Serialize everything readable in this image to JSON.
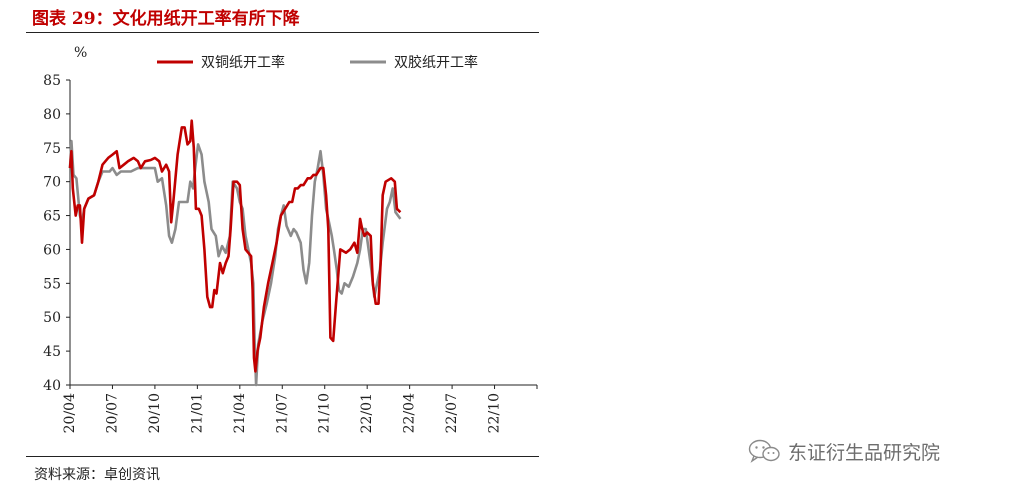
{
  "header": {
    "title": "图表 29：文化用纸开工率有所下降"
  },
  "footer": {
    "source": "资料来源：卓创资讯"
  },
  "watermark": {
    "text": "东证衍生品研究院",
    "icon": "wechat-icon"
  },
  "colors": {
    "title": "#C00000",
    "series1": "#C00000",
    "series2": "#8C8C8C"
  },
  "chart_data": {
    "type": "line",
    "unit": "%",
    "ylim": [
      40,
      85
    ],
    "yticks": [
      40,
      45,
      50,
      55,
      60,
      65,
      70,
      75,
      80,
      85
    ],
    "x_range": [
      "2020-04",
      "2023-01"
    ],
    "xticks": [
      "20/04",
      "20/07",
      "20/10",
      "21/01",
      "21/04",
      "21/07",
      "21/10",
      "22/01",
      "22/04",
      "22/07",
      "22/10"
    ],
    "legend_position": "top",
    "grid": false,
    "series": [
      {
        "name": "双铜纸开工率",
        "points": [
          [
            0.0,
            72
          ],
          [
            0.1,
            74.5
          ],
          [
            0.2,
            69
          ],
          [
            0.4,
            65
          ],
          [
            0.55,
            66.5
          ],
          [
            0.7,
            66.5
          ],
          [
            0.85,
            61
          ],
          [
            1.0,
            66
          ],
          [
            1.3,
            67.5
          ],
          [
            1.7,
            68
          ],
          [
            2.0,
            70
          ],
          [
            2.3,
            72.5
          ],
          [
            2.7,
            73.5
          ],
          [
            3.0,
            74
          ],
          [
            3.3,
            74.5
          ],
          [
            3.5,
            72
          ],
          [
            3.8,
            72.5
          ],
          [
            4.1,
            73
          ],
          [
            4.5,
            73.5
          ],
          [
            4.8,
            73
          ],
          [
            5.0,
            72
          ],
          [
            5.3,
            73
          ],
          [
            5.7,
            73.2
          ],
          [
            6.0,
            73.5
          ],
          [
            6.3,
            73
          ],
          [
            6.5,
            71.5
          ],
          [
            6.8,
            72.5
          ],
          [
            7.0,
            71.5
          ],
          [
            7.15,
            64
          ],
          [
            7.3,
            67
          ],
          [
            7.6,
            74
          ],
          [
            7.9,
            78
          ],
          [
            8.1,
            78
          ],
          [
            8.3,
            75.5
          ],
          [
            8.5,
            76
          ],
          [
            8.6,
            79
          ],
          [
            8.75,
            75
          ],
          [
            8.9,
            66
          ],
          [
            9.1,
            66
          ],
          [
            9.3,
            65
          ],
          [
            9.5,
            60
          ],
          [
            9.7,
            53
          ],
          [
            9.9,
            51.5
          ],
          [
            10.05,
            51.5
          ],
          [
            10.2,
            54
          ],
          [
            10.35,
            53.5
          ],
          [
            10.6,
            58
          ],
          [
            10.8,
            56.5
          ],
          [
            11.0,
            58
          ],
          [
            11.2,
            59
          ],
          [
            11.35,
            63
          ],
          [
            11.55,
            70
          ],
          [
            11.8,
            70
          ],
          [
            12.0,
            69.5
          ],
          [
            12.2,
            63
          ],
          [
            12.4,
            60
          ],
          [
            12.6,
            59.5
          ],
          [
            12.8,
            59
          ],
          [
            12.9,
            54
          ],
          [
            13.0,
            44
          ],
          [
            13.1,
            42
          ],
          [
            13.25,
            45
          ],
          [
            13.45,
            47
          ],
          [
            13.7,
            51.5
          ],
          [
            14.0,
            55
          ],
          [
            14.3,
            58
          ],
          [
            14.6,
            61
          ],
          [
            14.9,
            65
          ],
          [
            15.2,
            66
          ],
          [
            15.5,
            67
          ],
          [
            15.7,
            67
          ],
          [
            15.9,
            69
          ],
          [
            16.1,
            69
          ],
          [
            16.3,
            69.5
          ],
          [
            16.5,
            69.5
          ],
          [
            16.8,
            70.5
          ],
          [
            17.0,
            70.5
          ],
          [
            17.2,
            71
          ],
          [
            17.4,
            71
          ],
          [
            17.7,
            72
          ],
          [
            17.9,
            72
          ],
          [
            18.0,
            70
          ],
          [
            18.1,
            68
          ],
          [
            18.25,
            63
          ],
          [
            18.4,
            47
          ],
          [
            18.6,
            46.5
          ],
          [
            18.8,
            52
          ],
          [
            19.1,
            60
          ],
          [
            19.5,
            59.5
          ],
          [
            19.8,
            60
          ],
          [
            20.1,
            61
          ],
          [
            20.3,
            59.5
          ],
          [
            20.5,
            64.5
          ],
          [
            20.65,
            63
          ],
          [
            20.8,
            62
          ],
          [
            21.0,
            62.5
          ],
          [
            21.25,
            62
          ],
          [
            21.4,
            55
          ],
          [
            21.6,
            52
          ],
          [
            21.8,
            52
          ],
          [
            21.95,
            58
          ],
          [
            22.1,
            68
          ],
          [
            22.3,
            70
          ],
          [
            22.7,
            70.5
          ],
          [
            22.95,
            70
          ],
          [
            23.1,
            66
          ],
          [
            23.35,
            65.5
          ]
        ]
      },
      {
        "name": "双胶纸开工率",
        "points": [
          [
            0.0,
            72
          ],
          [
            0.1,
            76
          ],
          [
            0.25,
            71
          ],
          [
            0.45,
            70.5
          ],
          [
            0.7,
            65
          ],
          [
            0.85,
            64
          ],
          [
            1.0,
            66
          ],
          [
            1.3,
            67.5
          ],
          [
            1.7,
            68
          ],
          [
            2.0,
            70
          ],
          [
            2.3,
            71.5
          ],
          [
            2.8,
            71.5
          ],
          [
            3.0,
            72
          ],
          [
            3.3,
            71
          ],
          [
            3.6,
            71.5
          ],
          [
            4.0,
            71.5
          ],
          [
            4.3,
            71.5
          ],
          [
            4.8,
            72
          ],
          [
            5.2,
            72
          ],
          [
            5.6,
            72
          ],
          [
            6.0,
            72
          ],
          [
            6.2,
            70
          ],
          [
            6.5,
            70.5
          ],
          [
            6.8,
            66.5
          ],
          [
            7.0,
            62
          ],
          [
            7.2,
            61
          ],
          [
            7.45,
            63
          ],
          [
            7.7,
            67
          ],
          [
            8.0,
            67
          ],
          [
            8.3,
            67
          ],
          [
            8.5,
            70
          ],
          [
            8.7,
            69
          ],
          [
            8.85,
            72
          ],
          [
            9.05,
            75.5
          ],
          [
            9.3,
            74
          ],
          [
            9.5,
            70
          ],
          [
            9.8,
            67
          ],
          [
            10.0,
            63
          ],
          [
            10.3,
            62
          ],
          [
            10.5,
            59
          ],
          [
            10.75,
            60.5
          ],
          [
            11.0,
            59.5
          ],
          [
            11.3,
            62
          ],
          [
            11.5,
            70
          ],
          [
            11.8,
            69
          ],
          [
            12.0,
            67
          ],
          [
            12.2,
            66
          ],
          [
            12.4,
            62
          ],
          [
            12.6,
            60
          ],
          [
            12.8,
            58
          ],
          [
            12.95,
            55
          ],
          [
            13.05,
            46
          ],
          [
            13.15,
            40
          ],
          [
            13.3,
            46
          ],
          [
            13.6,
            49.5
          ],
          [
            13.9,
            52
          ],
          [
            14.2,
            55
          ],
          [
            14.5,
            59
          ],
          [
            14.7,
            63
          ],
          [
            14.9,
            65
          ],
          [
            15.1,
            66.5
          ],
          [
            15.3,
            63.5
          ],
          [
            15.6,
            62
          ],
          [
            15.8,
            63
          ],
          [
            16.0,
            62.5
          ],
          [
            16.3,
            61
          ],
          [
            16.5,
            57
          ],
          [
            16.7,
            55
          ],
          [
            16.9,
            58
          ],
          [
            17.1,
            65
          ],
          [
            17.3,
            70
          ],
          [
            17.5,
            72
          ],
          [
            17.7,
            74.5
          ],
          [
            17.9,
            71
          ],
          [
            18.1,
            66
          ],
          [
            18.3,
            64
          ],
          [
            18.5,
            62
          ],
          [
            18.65,
            60
          ],
          [
            18.85,
            57
          ],
          [
            19.0,
            54
          ],
          [
            19.2,
            53.5
          ],
          [
            19.4,
            55
          ],
          [
            19.7,
            54.5
          ],
          [
            20.0,
            56
          ],
          [
            20.3,
            58
          ],
          [
            20.5,
            60
          ],
          [
            20.7,
            63
          ],
          [
            20.9,
            63
          ],
          [
            21.1,
            60
          ],
          [
            21.3,
            57
          ],
          [
            21.5,
            53
          ],
          [
            21.7,
            55
          ],
          [
            21.9,
            57
          ],
          [
            22.1,
            61
          ],
          [
            22.4,
            66
          ],
          [
            22.6,
            67
          ],
          [
            22.8,
            69
          ],
          [
            23.0,
            65.5
          ],
          [
            23.35,
            64.5
          ]
        ]
      }
    ]
  }
}
